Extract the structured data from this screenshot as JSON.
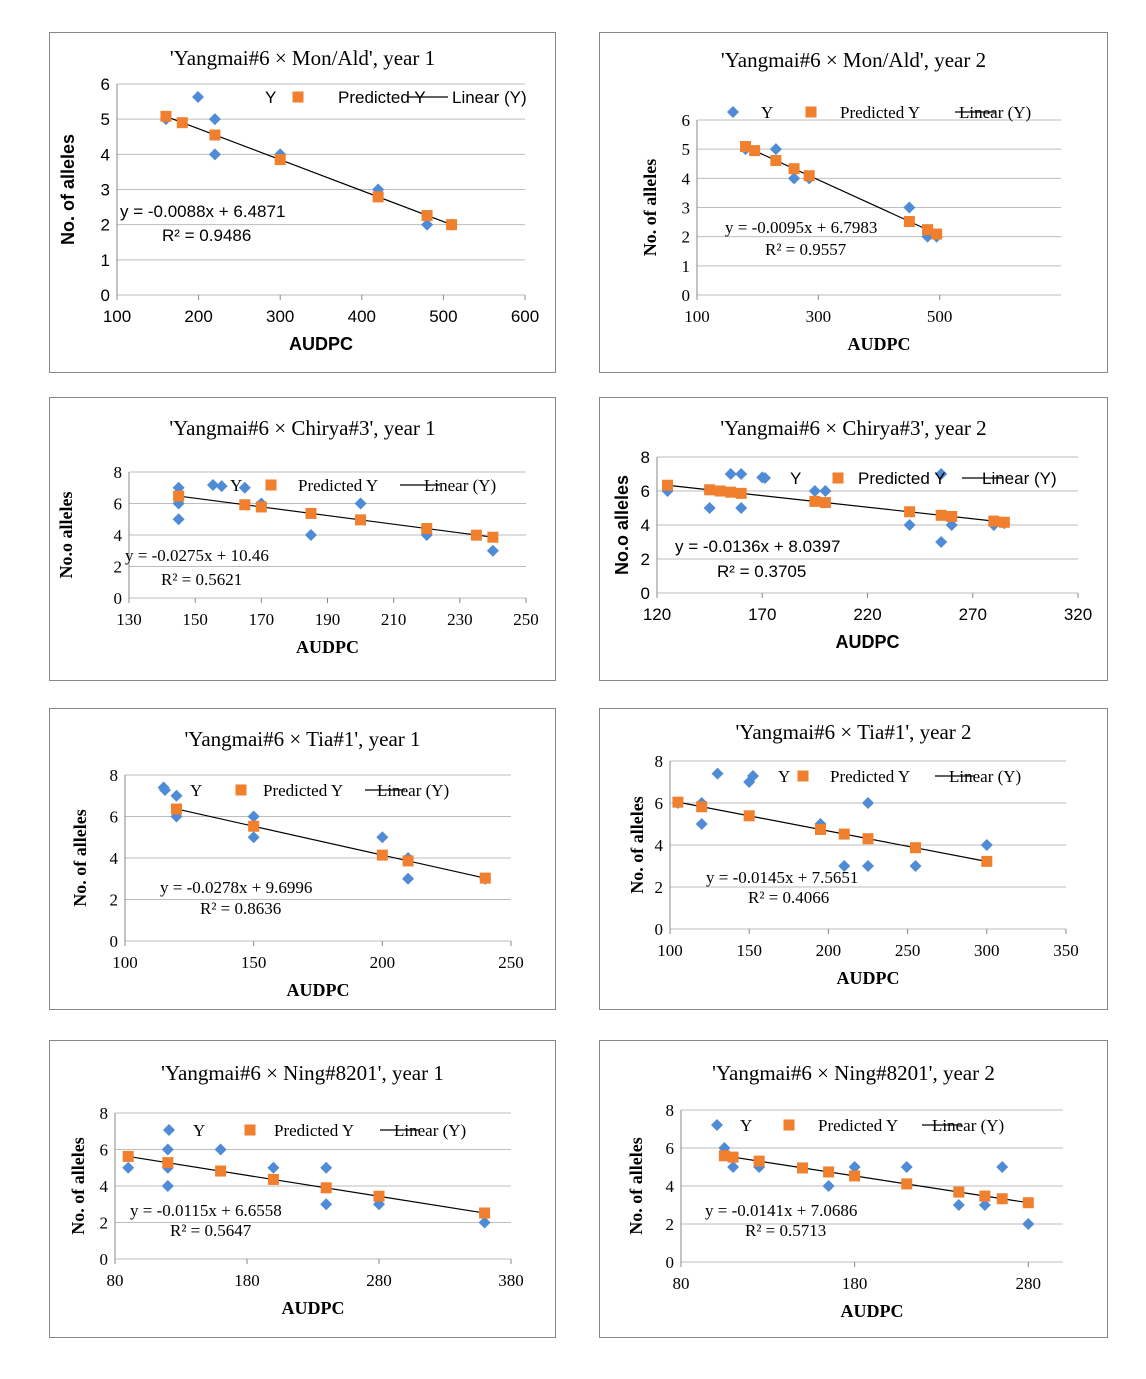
{
  "colors": {
    "y": "#4F8BD6",
    "pred": "#F07F2E",
    "line": "#000000",
    "grid": "#BDBDBD"
  },
  "chart_data": [
    {
      "type": "scatter",
      "title": "'Yangmai#6 × Mon/Ald', year 1",
      "xlabel": "AUDPC",
      "ylabel": "No. of alleles",
      "xlim": [
        100,
        600
      ],
      "ylim": [
        0,
        6
      ],
      "xticks": [
        "100",
        "200",
        "300",
        "400",
        "500",
        "600"
      ],
      "yticks": [
        "0",
        "1",
        "2",
        "3",
        "4",
        "5",
        "6"
      ],
      "legend": [
        "Y",
        "Predicted Y",
        "Linear (Y)"
      ],
      "equation": "y = -0.0088x + 6.4871",
      "r2": "R² = 0.9486",
      "fit": {
        "slope": -0.0088,
        "intercept": 6.4871,
        "x_range": [
          160,
          510
        ]
      },
      "series": [
        {
          "name": "Y",
          "points": [
            [
              160,
              5
            ],
            [
              220,
              5
            ],
            [
              220,
              4
            ],
            [
              300,
              4
            ],
            [
              420,
              3
            ],
            [
              480,
              2
            ],
            [
              510,
              2
            ]
          ]
        },
        {
          "name": "Predicted Y",
          "points": [
            [
              160,
              5.08
            ],
            [
              180,
              4.9
            ],
            [
              220,
              4.55
            ],
            [
              300,
              3.85
            ],
            [
              420,
              2.79
            ],
            [
              480,
              2.26
            ],
            [
              510,
              2.0
            ]
          ]
        }
      ]
    },
    {
      "type": "scatter",
      "title": "'Yangmai#6 × Mon/Ald', year 2",
      "xlabel": "AUDPC",
      "ylabel": "No. of alleles",
      "xlim": [
        100,
        700
      ],
      "ylim": [
        0,
        6
      ],
      "xticks": [
        "100",
        "300",
        "500"
      ],
      "yticks": [
        "0",
        "1",
        "2",
        "3",
        "4",
        "5",
        "6"
      ],
      "legend": [
        "Y",
        "Predicted Y",
        "Linear (Y)"
      ],
      "equation": "y = -0.0095x + 6.7983",
      "r2": "R² = 0.9557",
      "fit": {
        "slope": -0.0095,
        "intercept": 6.7983,
        "x_range": [
          180,
          495
        ]
      },
      "series": [
        {
          "name": "Y",
          "points": [
            [
              180,
              5
            ],
            [
              230,
              5
            ],
            [
              260,
              4
            ],
            [
              285,
              4
            ],
            [
              450,
              3
            ],
            [
              480,
              2
            ],
            [
              495,
              2
            ]
          ]
        },
        {
          "name": "Predicted Y",
          "points": [
            [
              180,
              5.09
            ],
            [
              195,
              4.95
            ],
            [
              230,
              4.61
            ],
            [
              260,
              4.33
            ],
            [
              285,
              4.09
            ],
            [
              450,
              2.52
            ],
            [
              480,
              2.24
            ],
            [
              495,
              2.09
            ]
          ]
        }
      ]
    },
    {
      "type": "scatter",
      "title": "'Yangmai#6 × Chirya#3', year 1",
      "xlabel": "AUDPC",
      "ylabel": "No.o alleles",
      "xlim": [
        130,
        250
      ],
      "ylim": [
        0,
        8
      ],
      "xticks": [
        "130",
        "150",
        "170",
        "190",
        "210",
        "230",
        "250"
      ],
      "yticks": [
        "0",
        "2",
        "4",
        "6",
        "8"
      ],
      "legend": [
        "Y",
        "Predicted Y",
        "Linear (Y)"
      ],
      "equation": "y = -0.0275x + 10.46",
      "r2": "R² = 0.5621",
      "fit": {
        "slope": -0.0275,
        "intercept": 10.46,
        "x_range": [
          145,
          240
        ]
      },
      "series": [
        {
          "name": "Y",
          "points": [
            [
              145,
              7
            ],
            [
              145,
              6
            ],
            [
              145,
              5
            ],
            [
              158,
              7.1
            ],
            [
              165,
              7
            ],
            [
              170,
              6
            ],
            [
              185,
              4
            ],
            [
              200,
              6
            ],
            [
              220,
              4
            ],
            [
              240,
              3
            ]
          ]
        },
        {
          "name": "Predicted Y",
          "points": [
            [
              145,
              6.47
            ],
            [
              165,
              5.92
            ],
            [
              170,
              5.78
            ],
            [
              185,
              5.37
            ],
            [
              200,
              4.96
            ],
            [
              220,
              4.41
            ],
            [
              235,
              3.99
            ],
            [
              240,
              3.86
            ]
          ]
        }
      ]
    },
    {
      "type": "scatter",
      "title": "'Yangmai#6 × Chirya#3', year 2",
      "xlabel": "AUDPC",
      "ylabel": "No.o alleles",
      "xlim": [
        120,
        320
      ],
      "ylim": [
        0,
        8
      ],
      "xticks": [
        "120",
        "170",
        "220",
        "270",
        "320"
      ],
      "yticks": [
        "0",
        "2",
        "4",
        "6",
        "8"
      ],
      "legend": [
        "Y",
        "Predicted Y",
        "Linear (Y)"
      ],
      "equation": "y = -0.0136x + 8.0397",
      "r2": "R² = 0.3705",
      "fit": {
        "slope": -0.0136,
        "intercept": 8.0397,
        "x_range": [
          125,
          285
        ]
      },
      "series": [
        {
          "name": "Y",
          "points": [
            [
              125,
              6
            ],
            [
              145,
              5
            ],
            [
              155,
              7
            ],
            [
              160,
              7
            ],
            [
              160,
              5
            ],
            [
              170,
              6.8
            ],
            [
              195,
              6
            ],
            [
              200,
              6
            ],
            [
              240,
              4
            ],
            [
              255,
              7
            ],
            [
              255,
              3
            ],
            [
              260,
              4
            ],
            [
              280,
              4
            ],
            [
              285,
              4.1
            ]
          ]
        },
        {
          "name": "Predicted Y",
          "points": [
            [
              125,
              6.34
            ],
            [
              145,
              6.07
            ],
            [
              150,
              6.0
            ],
            [
              155,
              5.93
            ],
            [
              160,
              5.86
            ],
            [
              195,
              5.39
            ],
            [
              200,
              5.32
            ],
            [
              240,
              4.78
            ],
            [
              255,
              4.57
            ],
            [
              260,
              4.5
            ],
            [
              280,
              4.23
            ],
            [
              285,
              4.16
            ]
          ]
        }
      ]
    },
    {
      "type": "scatter",
      "title": "'Yangmai#6 × Tia#1', year 1",
      "xlabel": "AUDPC",
      "ylabel": "No. of alleles",
      "xlim": [
        100,
        250
      ],
      "ylim": [
        0,
        8
      ],
      "xticks": [
        "100",
        "150",
        "200",
        "250"
      ],
      "yticks": [
        "0",
        "2",
        "4",
        "6",
        "8"
      ],
      "legend": [
        "Y",
        "Predicted Y",
        "Linear (Y)"
      ],
      "equation": "y = -0.0278x + 9.6996",
      "r2": "R² = 0.8636",
      "fit": {
        "slope": -0.0278,
        "intercept": 9.6996,
        "x_range": [
          120,
          240
        ]
      },
      "series": [
        {
          "name": "Y",
          "points": [
            [
              115,
              7.4
            ],
            [
              120,
              7
            ],
            [
              120,
              6
            ],
            [
              150,
              6
            ],
            [
              150,
              5
            ],
            [
              200,
              5
            ],
            [
              210,
              4
            ],
            [
              210,
              3
            ],
            [
              240,
              3
            ]
          ]
        },
        {
          "name": "Predicted Y",
          "points": [
            [
              120,
              6.36
            ],
            [
              150,
              5.53
            ],
            [
              200,
              4.14
            ],
            [
              210,
              3.86
            ],
            [
              240,
              3.03
            ]
          ]
        }
      ]
    },
    {
      "type": "scatter",
      "title": "'Yangmai#6 × Tia#1', year 2",
      "xlabel": "AUDPC",
      "ylabel": "No. of alleles",
      "xlim": [
        100,
        350
      ],
      "ylim": [
        0,
        8
      ],
      "xticks": [
        "100",
        "150",
        "200",
        "250",
        "300",
        "350"
      ],
      "yticks": [
        "0",
        "2",
        "4",
        "6",
        "8"
      ],
      "legend": [
        "Y",
        "Predicted Y",
        "Linear (Y)"
      ],
      "equation": "y = -0.0145x + 7.5651",
      "r2": "R² = 0.4066",
      "fit": {
        "slope": -0.0145,
        "intercept": 7.5651,
        "x_range": [
          105,
          300
        ]
      },
      "series": [
        {
          "name": "Y",
          "points": [
            [
              105,
              6
            ],
            [
              120,
              6
            ],
            [
              120,
              5
            ],
            [
              130,
              7.4
            ],
            [
              150,
              7
            ],
            [
              195,
              5
            ],
            [
              210,
              3
            ],
            [
              225,
              6
            ],
            [
              225,
              3
            ],
            [
              255,
              3
            ],
            [
              300,
              4
            ]
          ]
        },
        {
          "name": "Predicted Y",
          "points": [
            [
              105,
              6.04
            ],
            [
              120,
              5.82
            ],
            [
              150,
              5.39
            ],
            [
              195,
              4.74
            ],
            [
              210,
              4.52
            ],
            [
              225,
              4.3
            ],
            [
              255,
              3.87
            ],
            [
              300,
              3.22
            ]
          ]
        }
      ]
    },
    {
      "type": "scatter",
      "title": "'Yangmai#6 × Ning#8201', year 1",
      "xlabel": "AUDPC",
      "ylabel": "No. of alleles",
      "xlim": [
        80,
        380
      ],
      "ylim": [
        0,
        8
      ],
      "xticks": [
        "80",
        "180",
        "280",
        "380"
      ],
      "yticks": [
        "0",
        "2",
        "4",
        "6",
        "8"
      ],
      "legend": [
        "Y",
        "Predicted Y",
        "Linear (Y)"
      ],
      "equation": "y = -0.0115x + 6.6558",
      "r2": "R² = 0.5647",
      "fit": {
        "slope": -0.0115,
        "intercept": 6.6558,
        "x_range": [
          90,
          360
        ]
      },
      "series": [
        {
          "name": "Y",
          "points": [
            [
              90,
              5
            ],
            [
              120,
              6
            ],
            [
              120,
              5
            ],
            [
              120,
              4
            ],
            [
              160,
              6
            ],
            [
              200,
              5
            ],
            [
              240,
              5
            ],
            [
              240,
              3
            ],
            [
              280,
              3
            ],
            [
              360,
              2
            ]
          ]
        },
        {
          "name": "Predicted Y",
          "points": [
            [
              90,
              5.62
            ],
            [
              120,
              5.28
            ],
            [
              160,
              4.82
            ],
            [
              200,
              4.36
            ],
            [
              240,
              3.9
            ],
            [
              280,
              3.44
            ],
            [
              360,
              2.52
            ]
          ]
        }
      ]
    },
    {
      "type": "scatter",
      "title": "'Yangmai#6 × Ning#8201', year 2",
      "xlabel": "AUDPC",
      "ylabel": "No. of alleles",
      "xlim": [
        80,
        300
      ],
      "ylim": [
        0,
        8
      ],
      "xticks": [
        "80",
        "180",
        "280"
      ],
      "yticks": [
        "0",
        "2",
        "4",
        "6",
        "8"
      ],
      "legend": [
        "Y",
        "Predicted Y",
        "Linear (Y)"
      ],
      "equation": "y = -0.0141x + 7.0686",
      "r2": "R² = 0.5713",
      "fit": {
        "slope": -0.0141,
        "intercept": 7.0686,
        "x_range": [
          105,
          280
        ]
      },
      "series": [
        {
          "name": "Y",
          "points": [
            [
              105,
              6
            ],
            [
              110,
              5
            ],
            [
              125,
              5
            ],
            [
              165,
              4
            ],
            [
              180,
              5
            ],
            [
              210,
              5
            ],
            [
              240,
              3
            ],
            [
              255,
              3
            ],
            [
              265,
              5
            ],
            [
              280,
              2
            ]
          ]
        },
        {
          "name": "Predicted Y",
          "points": [
            [
              105,
              5.59
            ],
            [
              110,
              5.52
            ],
            [
              125,
              5.31
            ],
            [
              150,
              4.95
            ],
            [
              165,
              4.74
            ],
            [
              180,
              4.53
            ],
            [
              210,
              4.11
            ],
            [
              240,
              3.68
            ],
            [
              255,
              3.47
            ],
            [
              265,
              3.33
            ],
            [
              280,
              3.12
            ]
          ]
        }
      ]
    }
  ]
}
